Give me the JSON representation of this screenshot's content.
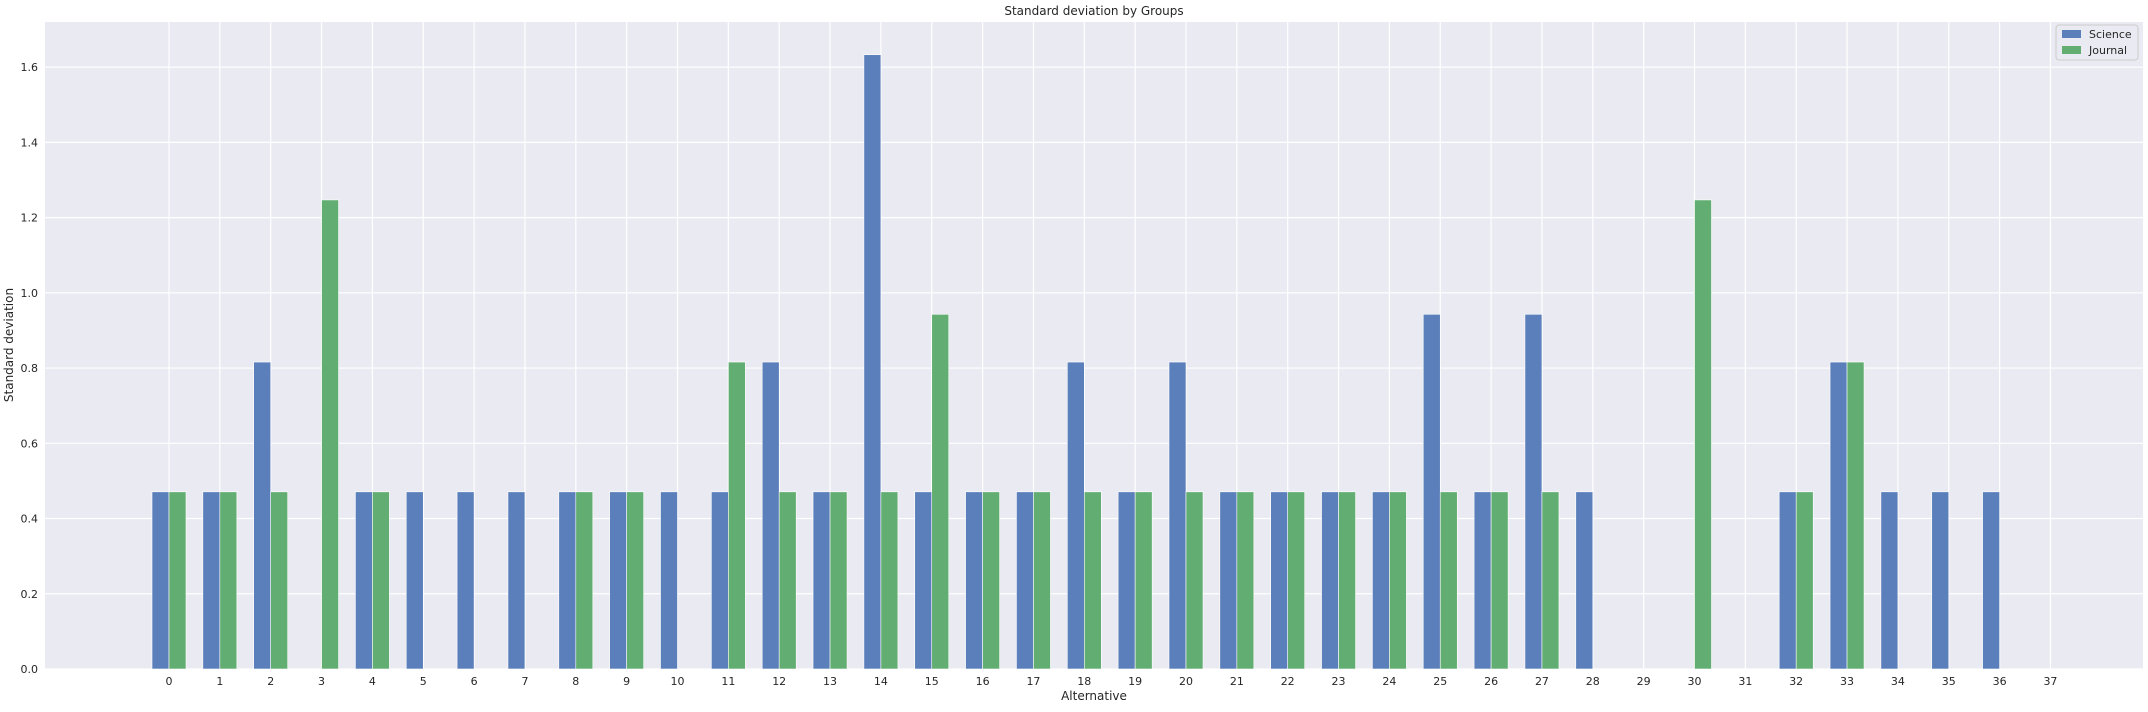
{
  "chart_data": {
    "type": "bar",
    "title": "Standard deviation by Groups",
    "xlabel": "Alternative",
    "ylabel": "Standard deviation",
    "categories": [
      "0",
      "1",
      "2",
      "3",
      "4",
      "5",
      "6",
      "7",
      "8",
      "9",
      "10",
      "11",
      "12",
      "13",
      "14",
      "15",
      "16",
      "17",
      "18",
      "19",
      "20",
      "21",
      "22",
      "23",
      "24",
      "25",
      "26",
      "27",
      "28",
      "29",
      "30",
      "31",
      "32",
      "33",
      "34",
      "35",
      "36",
      "37"
    ],
    "series": [
      {
        "name": "Science",
        "color": "#5a7fba",
        "values": [
          0.471,
          0.471,
          0.816,
          0,
          0.471,
          0.471,
          0.471,
          0.471,
          0.471,
          0.471,
          0.471,
          0.471,
          0.816,
          0.471,
          1.633,
          0.471,
          0.471,
          0.471,
          0.816,
          0.471,
          0.816,
          0.471,
          0.471,
          0.471,
          0.471,
          0.943,
          0.471,
          0.943,
          0.471,
          0,
          0,
          0,
          0.471,
          0.816,
          0.471,
          0.471,
          0.471,
          0
        ]
      },
      {
        "name": "Journal",
        "color": "#62ad72",
        "values": [
          0.471,
          0.471,
          0.471,
          1.247,
          0.471,
          0,
          0,
          0,
          0.471,
          0.471,
          0,
          0.816,
          0.471,
          0.471,
          0.471,
          0.943,
          0.471,
          0.471,
          0.471,
          0.471,
          0.471,
          0.471,
          0.471,
          0.471,
          0.471,
          0.471,
          0.471,
          0.471,
          0,
          0,
          1.247,
          0,
          0.471,
          0.816,
          0,
          0,
          0,
          0
        ]
      }
    ],
    "ylim": [
      0,
      1.72
    ],
    "yticks": [
      "0.0",
      "0.2",
      "0.4",
      "0.6",
      "0.8",
      "1.0",
      "1.2",
      "1.4",
      "1.6"
    ],
    "grid": true,
    "legend_position": "top-right",
    "background": "#eaeaf2"
  }
}
